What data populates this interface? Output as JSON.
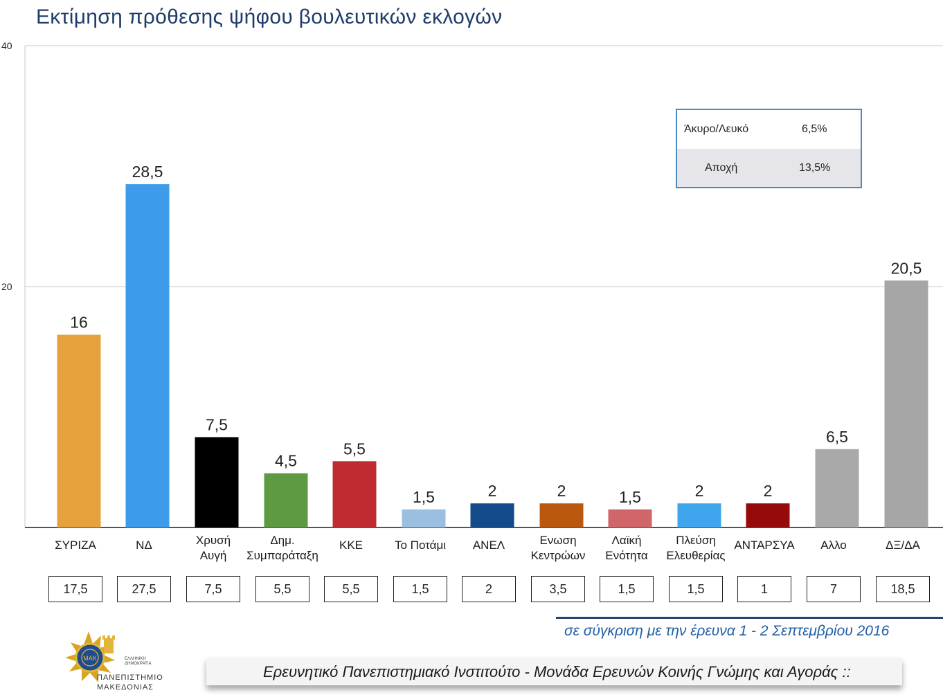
{
  "title": "Εκτίμηση πρόθεσης ψήφου βουλευτικών εκλογών",
  "chart_data": {
    "type": "bar",
    "title": "Εκτίμηση πρόθεσης ψήφου βουλευτικών εκλογών",
    "ylim": [
      0,
      40
    ],
    "yticks": [
      "20",
      "40"
    ],
    "grid": true,
    "categories": [
      [
        "ΣΥΡΙΖΑ"
      ],
      [
        "ΝΔ"
      ],
      [
        "Χρυσή",
        "Αυγή"
      ],
      [
        "Δημ.",
        "Συμπαράταξη"
      ],
      [
        "ΚΚΕ"
      ],
      [
        "Το Ποτάμι"
      ],
      [
        "ΑΝΕΛ"
      ],
      [
        "Ενωση",
        "Κεντρώων"
      ],
      [
        "Λαϊκή",
        "Ενότητα"
      ],
      [
        "Πλεύση",
        "Ελευθερίας"
      ],
      [
        "ΑΝΤΑΡΣΥΑ"
      ],
      [
        "Αλλο"
      ],
      [
        "ΔΞ/ΔΑ"
      ]
    ],
    "values": [
      16,
      28.5,
      7.5,
      4.5,
      5.5,
      1.5,
      2,
      2,
      1.5,
      2,
      2,
      6.5,
      20.5
    ],
    "value_labels": [
      "16",
      "28,5",
      "7,5",
      "4,5",
      "5,5",
      "1,5",
      "2",
      "2",
      "1,5",
      "2",
      "2",
      "6,5",
      "20,5"
    ],
    "colors": [
      "#e5a23c",
      "#3e9aea",
      "#000000",
      "#5e9a42",
      "#bf2b31",
      "#9bbfe0",
      "#134a8a",
      "#bb5810",
      "#d0666a",
      "#3fa5ec",
      "#970a0b",
      "#a9a9a9",
      "#a6a6a6"
    ],
    "previous_values": [
      "17,5",
      "27,5",
      "7,5",
      "5,5",
      "5,5",
      "1,5",
      "2",
      "3,5",
      "1,5",
      "1,5",
      "1",
      "7",
      "18,5"
    ]
  },
  "legend_table": {
    "rows": [
      {
        "label": "Άκυρο/Λευκό",
        "value": "6,5%"
      },
      {
        "label": "Αποχή",
        "value": "13,5%"
      }
    ]
  },
  "comparison_note": "σε σύγκριση με την έρευνα 1 - 2 Σεπτεμβρίου 2016",
  "footer": "Ερευνητικό Πανεπιστημιακό Ινστιτούτο - Μονάδα Ερευνών Κοινής Γνώμης και Αγοράς ::",
  "logo": {
    "line1": "ΠΑΝΕΠΙΣΤΗΜΙΟ",
    "line2": "ΜΑΚΕΔΟΝΙΑΣ",
    "tag1": "ΕΛΛΗΝΙΚΗ",
    "tag2": "ΔΗΜΟΚΡΑΤΙΑ",
    "emblem_text": "ΜΑΚ"
  }
}
